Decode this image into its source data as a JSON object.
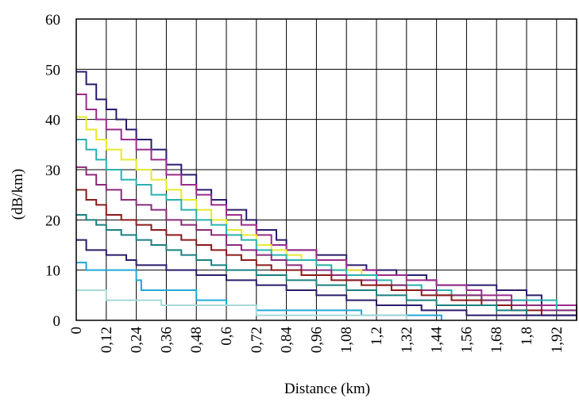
{
  "chart_data": {
    "type": "line",
    "title": "",
    "xlabel": "Distance (km)",
    "ylabel": "(dB/km)",
    "xlim": [
      0,
      2.0
    ],
    "ylim": [
      0,
      60
    ],
    "x_ticks": [
      "0",
      "0,12",
      "0,24",
      "0,36",
      "0,48",
      "0,6",
      "0,72",
      "0,84",
      "0,96",
      "1,08",
      "1,2",
      "1,32",
      "1,44",
      "1,56",
      "1,68",
      "1,8",
      "1,92"
    ],
    "y_ticks": [
      "0",
      "10",
      "20",
      "30",
      "40",
      "50",
      "60"
    ],
    "grid": true,
    "line_style": "step",
    "series": [
      {
        "color": "#2b1b6b",
        "values": [
          [
            0,
            49.5
          ],
          [
            0.04,
            47
          ],
          [
            0.08,
            44
          ],
          [
            0.12,
            42
          ],
          [
            0.16,
            40
          ],
          [
            0.2,
            38
          ],
          [
            0.24,
            36
          ],
          [
            0.3,
            34
          ],
          [
            0.36,
            31
          ],
          [
            0.42,
            29
          ],
          [
            0.48,
            26
          ],
          [
            0.54,
            24
          ],
          [
            0.6,
            22
          ],
          [
            0.68,
            20
          ],
          [
            0.72,
            18
          ],
          [
            0.8,
            16
          ],
          [
            0.84,
            14
          ],
          [
            0.96,
            13
          ],
          [
            1.08,
            11
          ],
          [
            1.16,
            10
          ],
          [
            1.28,
            9
          ],
          [
            1.4,
            8
          ],
          [
            1.44,
            7
          ],
          [
            1.68,
            6
          ],
          [
            1.8,
            5
          ],
          [
            1.86,
            3
          ],
          [
            2.0,
            3
          ]
        ]
      },
      {
        "color": "#9b2b8a",
        "values": [
          [
            0,
            45
          ],
          [
            0.04,
            42
          ],
          [
            0.08,
            40
          ],
          [
            0.12,
            38
          ],
          [
            0.18,
            36
          ],
          [
            0.24,
            34
          ],
          [
            0.3,
            32
          ],
          [
            0.36,
            29
          ],
          [
            0.42,
            27
          ],
          [
            0.48,
            25
          ],
          [
            0.54,
            23
          ],
          [
            0.6,
            21
          ],
          [
            0.66,
            19
          ],
          [
            0.72,
            17
          ],
          [
            0.78,
            15
          ],
          [
            0.84,
            14
          ],
          [
            0.96,
            12
          ],
          [
            1.08,
            10
          ],
          [
            1.2,
            9
          ],
          [
            1.32,
            8
          ],
          [
            1.44,
            7
          ],
          [
            1.56,
            6
          ],
          [
            1.62,
            5
          ],
          [
            1.74,
            4
          ],
          [
            1.8,
            3
          ],
          [
            1.92,
            3
          ],
          [
            2.0,
            1
          ]
        ]
      },
      {
        "color": "#e8e830",
        "values": [
          [
            0,
            40.5
          ],
          [
            0.04,
            38
          ],
          [
            0.08,
            36
          ],
          [
            0.12,
            34
          ],
          [
            0.18,
            32
          ],
          [
            0.24,
            30
          ],
          [
            0.3,
            28
          ],
          [
            0.36,
            26
          ],
          [
            0.42,
            24
          ],
          [
            0.48,
            22
          ],
          [
            0.54,
            20
          ],
          [
            0.6,
            18
          ],
          [
            0.66,
            17
          ],
          [
            0.72,
            15
          ],
          [
            0.78,
            14
          ],
          [
            0.84,
            13
          ],
          [
            0.9,
            12
          ],
          [
            0.96,
            11
          ],
          [
            1.02,
            10
          ],
          [
            1.14,
            9
          ],
          [
            1.2,
            7
          ],
          [
            1.32,
            6
          ],
          [
            1.44,
            5
          ],
          [
            1.56,
            5
          ],
          [
            1.62,
            4
          ],
          [
            1.74,
            3
          ],
          [
            1.8,
            3
          ],
          [
            1.86,
            2
          ]
        ]
      },
      {
        "color": "#2ab0b0",
        "values": [
          [
            0,
            36
          ],
          [
            0.04,
            34
          ],
          [
            0.08,
            32
          ],
          [
            0.12,
            30
          ],
          [
            0.18,
            28
          ],
          [
            0.24,
            27
          ],
          [
            0.3,
            25
          ],
          [
            0.36,
            24
          ],
          [
            0.42,
            22
          ],
          [
            0.48,
            20
          ],
          [
            0.54,
            19
          ],
          [
            0.6,
            17
          ],
          [
            0.66,
            16
          ],
          [
            0.72,
            14
          ],
          [
            0.78,
            13
          ],
          [
            0.84,
            12
          ],
          [
            0.96,
            11
          ],
          [
            1.02,
            10
          ],
          [
            1.08,
            9
          ],
          [
            1.2,
            8
          ],
          [
            1.26,
            7
          ],
          [
            1.38,
            6
          ],
          [
            1.5,
            5
          ],
          [
            1.62,
            4
          ],
          [
            1.74,
            4
          ],
          [
            1.92,
            2
          ],
          [
            2.0,
            0
          ]
        ]
      },
      {
        "color": "#8a2a7a",
        "values": [
          [
            0,
            30.5
          ],
          [
            0.04,
            29
          ],
          [
            0.08,
            27
          ],
          [
            0.12,
            26
          ],
          [
            0.18,
            24
          ],
          [
            0.24,
            23
          ],
          [
            0.3,
            22
          ],
          [
            0.36,
            20
          ],
          [
            0.42,
            19
          ],
          [
            0.48,
            18
          ],
          [
            0.54,
            17
          ],
          [
            0.6,
            15
          ],
          [
            0.66,
            14
          ],
          [
            0.72,
            13
          ],
          [
            0.78,
            12
          ],
          [
            0.84,
            11
          ],
          [
            0.9,
            10
          ],
          [
            1.02,
            9
          ],
          [
            1.08,
            8
          ],
          [
            1.2,
            7
          ],
          [
            1.32,
            6
          ],
          [
            1.44,
            5
          ],
          [
            1.56,
            5
          ],
          [
            1.62,
            4
          ],
          [
            1.74,
            3
          ],
          [
            1.86,
            2
          ],
          [
            2.0,
            1
          ]
        ]
      },
      {
        "color": "#8b1a1a",
        "values": [
          [
            0,
            26
          ],
          [
            0.04,
            24
          ],
          [
            0.08,
            23
          ],
          [
            0.12,
            21
          ],
          [
            0.18,
            20
          ],
          [
            0.24,
            19
          ],
          [
            0.3,
            18
          ],
          [
            0.36,
            17
          ],
          [
            0.42,
            16
          ],
          [
            0.48,
            15
          ],
          [
            0.54,
            14
          ],
          [
            0.6,
            13
          ],
          [
            0.66,
            12
          ],
          [
            0.72,
            11
          ],
          [
            0.78,
            10
          ],
          [
            0.9,
            9
          ],
          [
            1.02,
            8
          ],
          [
            1.14,
            7
          ],
          [
            1.26,
            6
          ],
          [
            1.38,
            5
          ],
          [
            1.5,
            4
          ],
          [
            1.62,
            3
          ],
          [
            1.74,
            2
          ],
          [
            1.86,
            1
          ],
          [
            2.0,
            0
          ]
        ]
      },
      {
        "color": "#1a8080",
        "values": [
          [
            0,
            21
          ],
          [
            0.04,
            20
          ],
          [
            0.08,
            19
          ],
          [
            0.12,
            18
          ],
          [
            0.18,
            17
          ],
          [
            0.24,
            16
          ],
          [
            0.3,
            15
          ],
          [
            0.36,
            14
          ],
          [
            0.42,
            13
          ],
          [
            0.48,
            12
          ],
          [
            0.54,
            11
          ],
          [
            0.6,
            10
          ],
          [
            0.72,
            9
          ],
          [
            0.84,
            8
          ],
          [
            0.96,
            7
          ],
          [
            1.08,
            6
          ],
          [
            1.2,
            5
          ],
          [
            1.32,
            4
          ],
          [
            1.44,
            3
          ],
          [
            1.56,
            3
          ],
          [
            1.68,
            2
          ],
          [
            1.8,
            1
          ],
          [
            2.0,
            1
          ]
        ]
      },
      {
        "color": "#2b1b6b",
        "values": [
          [
            0,
            16
          ],
          [
            0.04,
            14
          ],
          [
            0.12,
            13
          ],
          [
            0.2,
            12
          ],
          [
            0.24,
            11
          ],
          [
            0.36,
            10
          ],
          [
            0.48,
            9
          ],
          [
            0.6,
            8
          ],
          [
            0.72,
            7
          ],
          [
            0.84,
            6
          ],
          [
            0.96,
            5
          ],
          [
            1.08,
            4
          ],
          [
            1.2,
            3
          ],
          [
            1.38,
            2
          ],
          [
            1.56,
            1
          ],
          [
            2.0,
            1
          ]
        ]
      },
      {
        "color": "#20a8d8",
        "values": [
          [
            0,
            11.5
          ],
          [
            0.04,
            10
          ],
          [
            0.24,
            8
          ],
          [
            0.26,
            6
          ],
          [
            0.48,
            4
          ],
          [
            0.6,
            3
          ],
          [
            0.72,
            2
          ],
          [
            1.08,
            2
          ],
          [
            1.14,
            1
          ],
          [
            1.44,
            1
          ],
          [
            1.46,
            0
          ]
        ]
      },
      {
        "color": "#a8d8d8",
        "values": [
          [
            0,
            6
          ],
          [
            0.12,
            4
          ],
          [
            0.34,
            3
          ],
          [
            0.72,
            1
          ],
          [
            1.2,
            1
          ],
          [
            1.32,
            0
          ]
        ]
      }
    ]
  }
}
